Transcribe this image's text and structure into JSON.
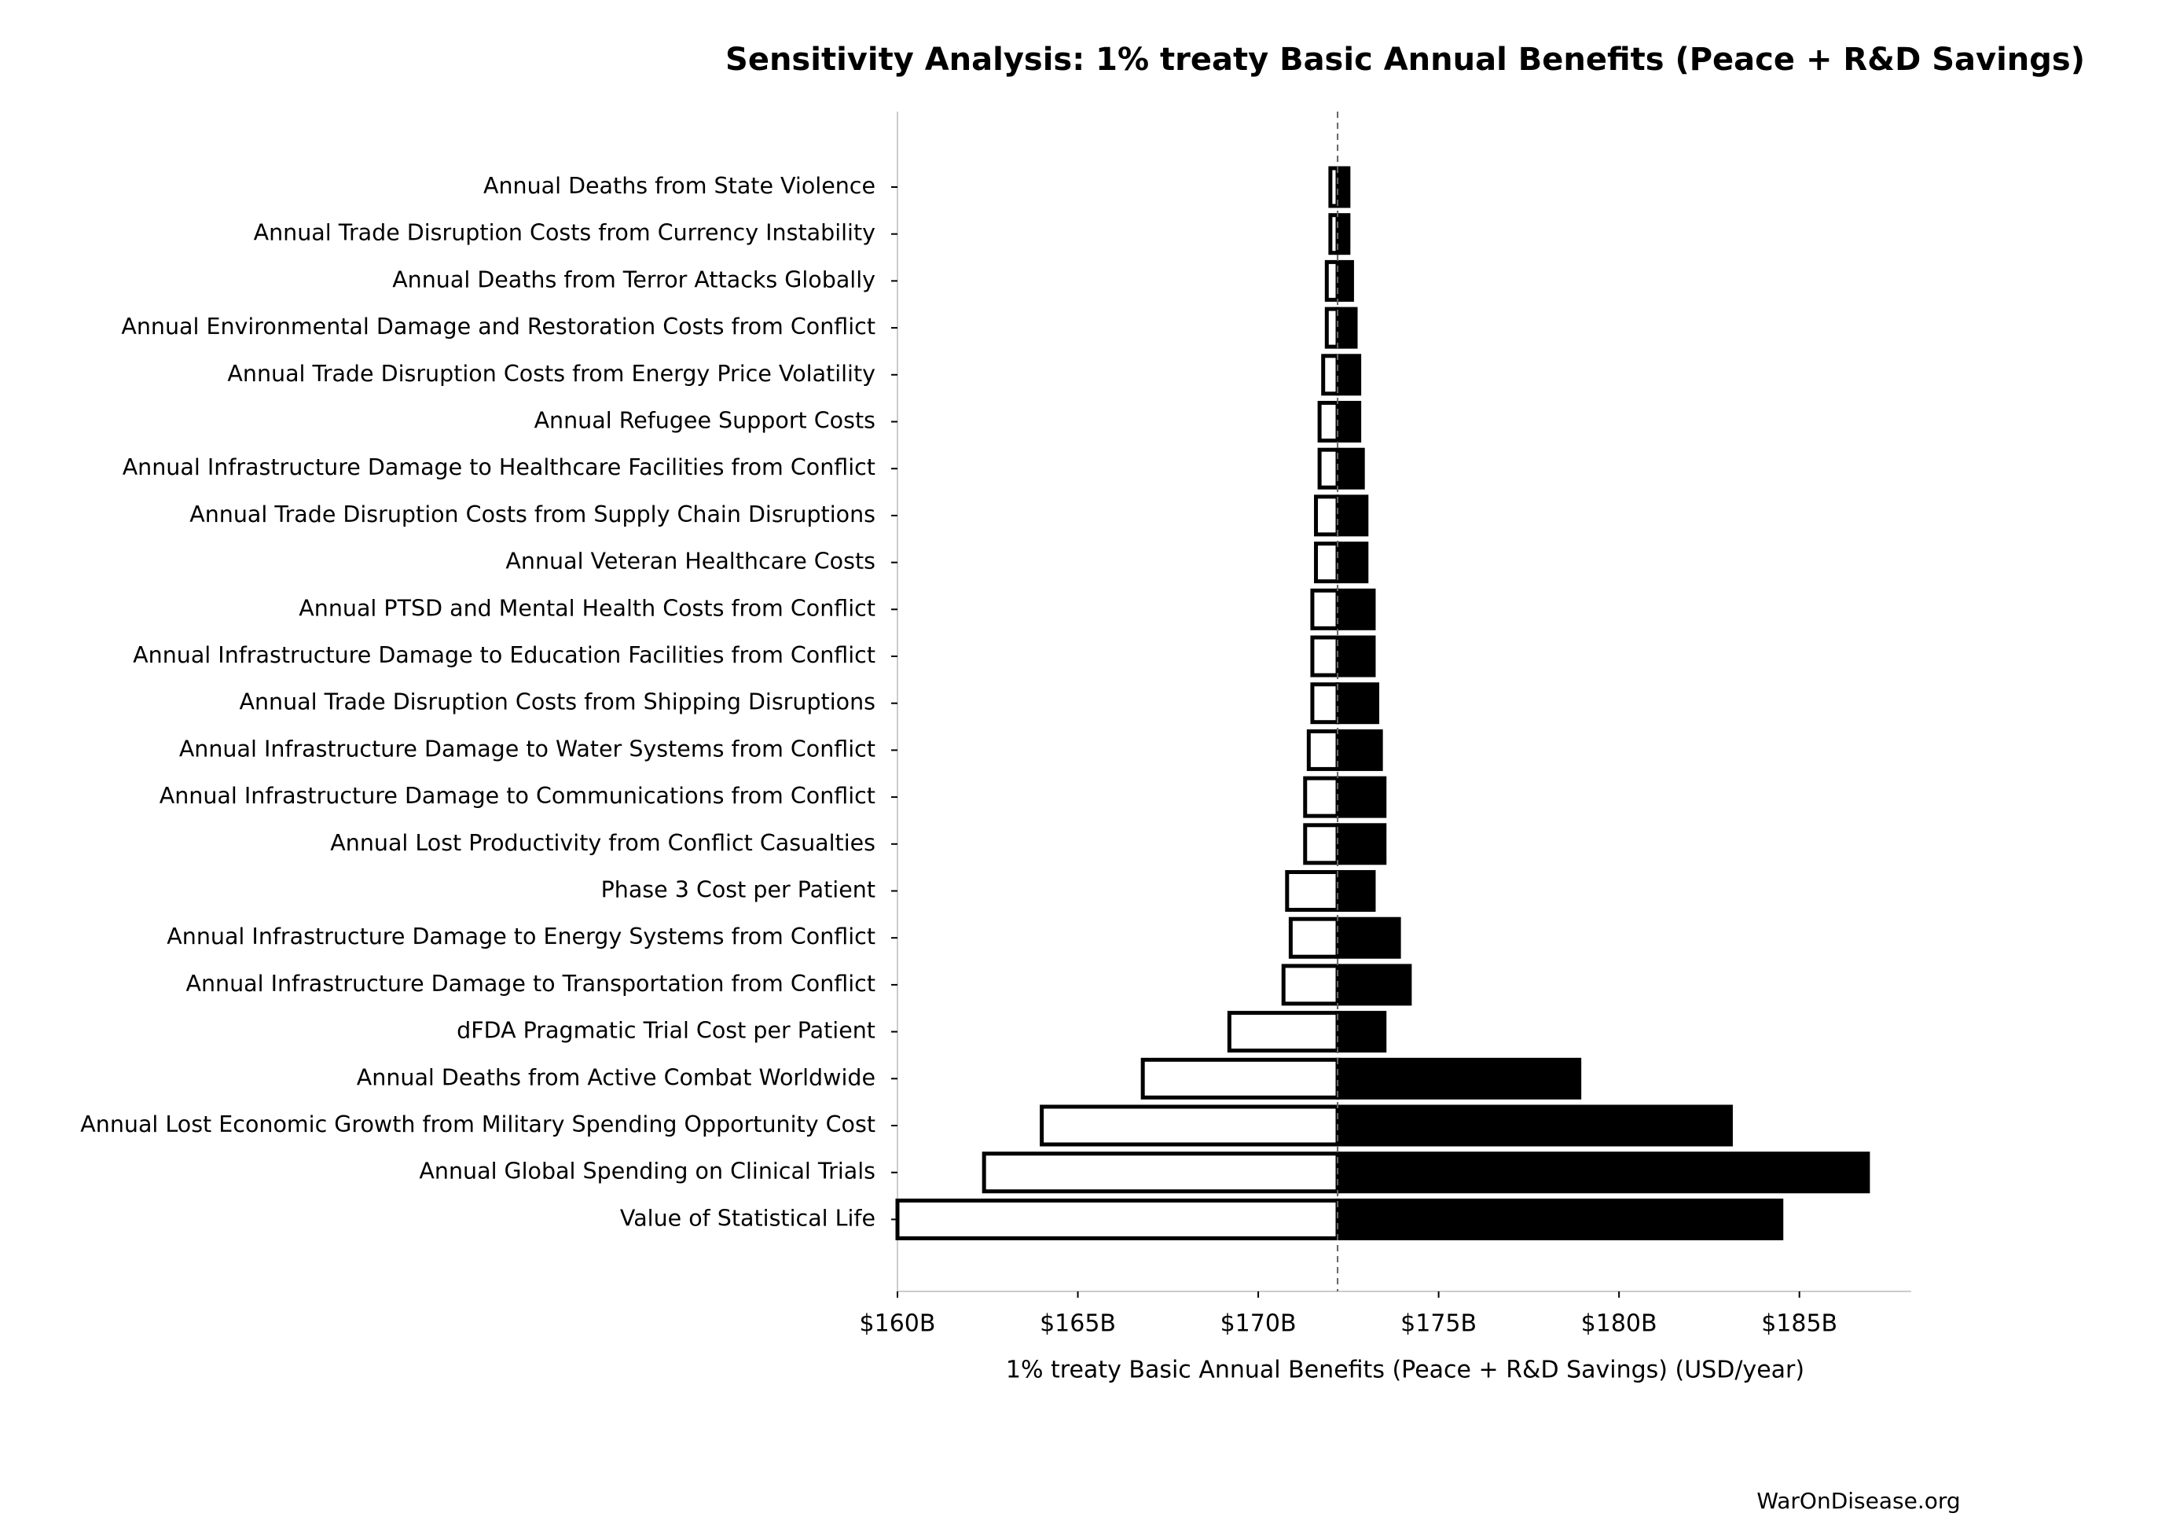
{
  "chart_data": {
    "type": "tornado",
    "title": "Sensitivity Analysis: 1% treaty Basic Annual Benefits (Peace + R&D Savings)",
    "xlabel": "1% treaty Basic Annual Benefits (Peace + R&D Savings) (USD/year)",
    "source": "WarOnDisease.org",
    "categories": [
      "Annual Deaths from State Violence",
      "Annual Trade Disruption Costs from Currency Instability",
      "Annual Deaths from Terror Attacks Globally",
      "Annual Environmental Damage and Restoration Costs from Conflict",
      "Annual Trade Disruption Costs from Energy Price Volatility",
      "Annual Refugee Support Costs",
      "Annual Infrastructure Damage to Healthcare Facilities from Conflict",
      "Annual Trade Disruption Costs from Supply Chain Disruptions",
      "Annual Veteran Healthcare Costs",
      "Annual PTSD and Mental Health Costs from Conflict",
      "Annual Infrastructure Damage to Education Facilities from Conflict",
      "Annual Trade Disruption Costs from Shipping Disruptions",
      "Annual Infrastructure Damage to Water Systems from Conflict",
      "Annual Infrastructure Damage to Communications from Conflict",
      "Annual Lost Productivity from Conflict Casualties",
      "Phase 3 Cost per Patient",
      "Annual Infrastructure Damage to Energy Systems from Conflict",
      "Annual Infrastructure Damage to Transportation from Conflict",
      "dFDA Pragmatic Trial Cost per Patient",
      "Annual Deaths from Active Combat Worldwide",
      "Annual Lost Economic Growth from Military Spending Opportunity Cost",
      "Annual Global Spending on Clinical Trials",
      "Value of Statistical Life"
    ],
    "baseline": 172.2,
    "low": [
      172.0,
      172.0,
      171.9,
      171.9,
      171.8,
      171.7,
      171.7,
      171.6,
      171.6,
      171.5,
      171.5,
      171.5,
      171.4,
      171.3,
      171.3,
      170.8,
      170.9,
      170.7,
      169.2,
      166.8,
      164.0,
      162.4,
      160.0
    ],
    "high": [
      172.5,
      172.5,
      172.6,
      172.7,
      172.8,
      172.8,
      172.9,
      173.0,
      173.0,
      173.2,
      173.2,
      173.3,
      173.4,
      173.5,
      173.5,
      173.2,
      173.9,
      174.2,
      173.5,
      178.9,
      183.1,
      186.9,
      184.5
    ],
    "low_color": "#ffffff",
    "high_color": "#000000",
    "xlim": [
      160,
      188.1
    ],
    "xticks": [
      {
        "value": 160,
        "label": "$160B"
      },
      {
        "value": 165,
        "label": "$165B"
      },
      {
        "value": 170,
        "label": "$170B"
      },
      {
        "value": 175,
        "label": "$175B"
      },
      {
        "value": 180,
        "label": "$180B"
      },
      {
        "value": 185,
        "label": "$185B"
      }
    ]
  }
}
